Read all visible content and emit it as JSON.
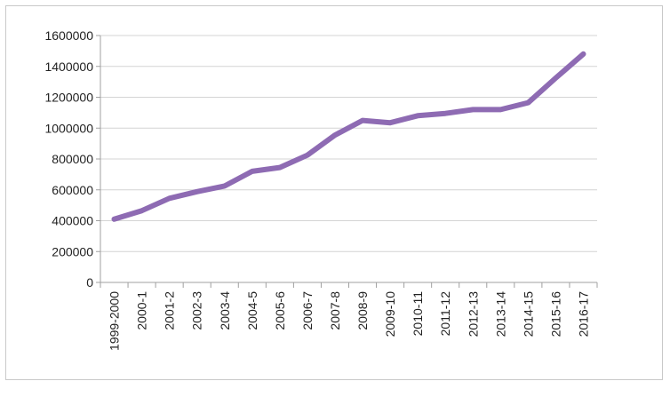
{
  "chart_data": {
    "type": "line",
    "title": "",
    "xlabel": "",
    "ylabel": "",
    "categories": [
      "1999-2000",
      "2000-1",
      "2001-2",
      "2002-3",
      "2003-4",
      "2004-5",
      "2005-6",
      "2006-7",
      "2007-8",
      "2008-9",
      "2009-10",
      "2010-11",
      "2011-12",
      "2012-13",
      "2013-14",
      "2014-15",
      "2015-16",
      "2016-17"
    ],
    "series": [
      {
        "values": [
          410000,
          465000,
          545000,
          588000,
          625000,
          720000,
          745000,
          825000,
          955000,
          1050000,
          1035000,
          1080000,
          1095000,
          1120000,
          1120000,
          1165000,
          1325000,
          1480000
        ],
        "color": "#8e6bb3"
      }
    ],
    "ylim": [
      0,
      1600000
    ],
    "yticks": [
      "0",
      "200000",
      "400000",
      "600000",
      "800000",
      "1000000",
      "1200000",
      "1400000",
      "1600000"
    ],
    "grid": true,
    "legend": "none"
  }
}
